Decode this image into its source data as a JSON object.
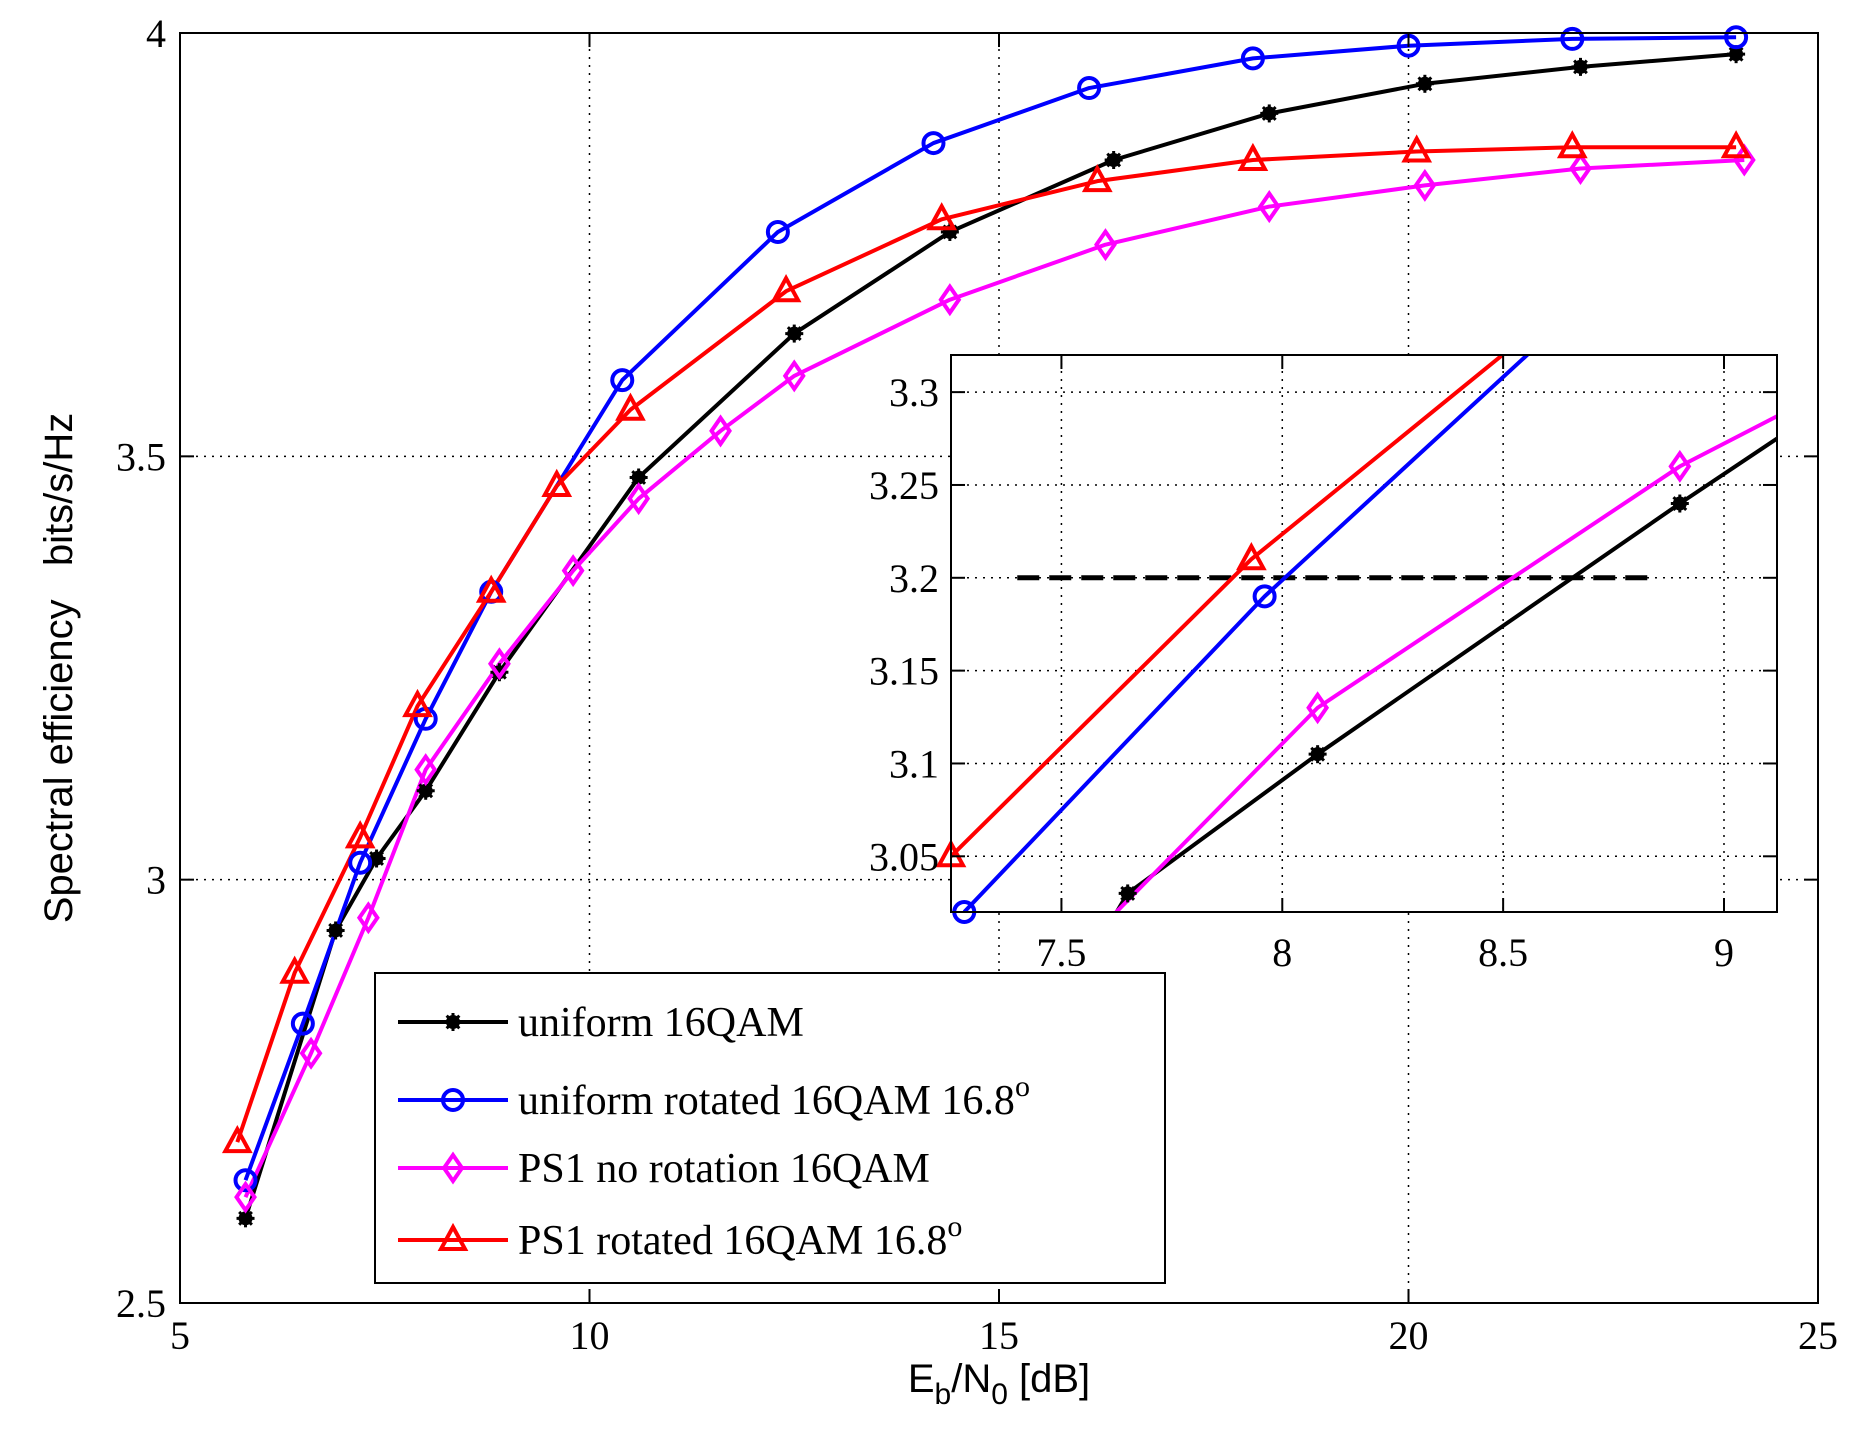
{
  "chart_data": [
    {
      "type": "line",
      "name": "main",
      "xlabel": "E_b/N_0 [dB]",
      "xlabel_parts": {
        "base1": "E",
        "sub1": "b",
        "slash": "/N",
        "sub2": "0",
        "rest": " [dB]"
      },
      "ylabel": "Spectral efficiency   bits/s/Hz",
      "xlim": [
        5,
        25
      ],
      "ylim": [
        2.5,
        4
      ],
      "xticks": [
        5,
        10,
        15,
        20,
        25
      ],
      "yticks": [
        2.5,
        3,
        3.5,
        4
      ],
      "xtick_labels": [
        "5",
        "10",
        "15",
        "20",
        "25"
      ],
      "ytick_labels": [
        "2.5",
        "3",
        "3.5",
        "4"
      ],
      "grid": true,
      "legend_position": "bottom-center",
      "series": [
        {
          "name": "uniform 16QAM",
          "color": "#000000",
          "marker": "asterisk",
          "x": [
            5.8,
            6.9,
            7.4,
            8.0,
            8.9,
            10.6,
            12.5,
            14.4,
            16.4,
            18.3,
            20.2,
            22.1,
            24.0
          ],
          "y": [
            2.6,
            2.94,
            3.025,
            3.105,
            3.245,
            3.475,
            3.645,
            3.765,
            3.85,
            3.905,
            3.94,
            3.96,
            3.975
          ]
        },
        {
          "name": "uniform rotated 16QAM  16.8",
          "name_suffix": "o",
          "color": "#0000ff",
          "marker": "circle",
          "x": [
            5.8,
            6.5,
            7.2,
            8.0,
            8.8,
            10.4,
            12.3,
            14.2,
            16.1,
            18.1,
            20.0,
            22.0,
            24.0
          ],
          "y": [
            2.645,
            2.83,
            3.02,
            3.19,
            3.34,
            3.59,
            3.765,
            3.87,
            3.935,
            3.97,
            3.985,
            3.993,
            3.995
          ]
        },
        {
          "name": "PS1 no rotation 16QAM",
          "color": "#ff00ff",
          "marker": "diamond",
          "x": [
            5.8,
            6.6,
            7.3,
            8.0,
            8.9,
            9.8,
            10.6,
            11.6,
            12.5,
            14.4,
            16.3,
            18.3,
            20.2,
            22.1,
            24.1
          ],
          "y": [
            2.625,
            2.795,
            2.955,
            3.13,
            3.255,
            3.365,
            3.45,
            3.53,
            3.595,
            3.685,
            3.75,
            3.795,
            3.82,
            3.84,
            3.85
          ]
        },
        {
          "name": "PS1 rotated 16QAM  16.8",
          "name_suffix": "o",
          "color": "#ff0000",
          "marker": "triangle",
          "x": [
            5.7,
            6.4,
            7.2,
            7.9,
            8.8,
            9.6,
            10.5,
            12.4,
            14.3,
            16.2,
            18.1,
            20.1,
            22.0,
            24.0
          ],
          "y": [
            2.69,
            2.89,
            3.05,
            3.205,
            3.34,
            3.465,
            3.555,
            3.695,
            3.78,
            3.825,
            3.85,
            3.86,
            3.865,
            3.865
          ]
        }
      ]
    },
    {
      "type": "line",
      "name": "inset",
      "xlim": [
        7.25,
        9.12
      ],
      "ylim": [
        3.02,
        3.32
      ],
      "xticks": [
        7.5,
        8,
        8.5,
        9
      ],
      "yticks": [
        3.05,
        3.1,
        3.15,
        3.2,
        3.25,
        3.3
      ],
      "xtick_labels": [
        "7.5",
        "8",
        "8.5",
        "9"
      ],
      "ytick_labels": [
        "3.05",
        "3.1",
        "3.15",
        "3.2",
        "3.25",
        "3.3"
      ],
      "grid": true,
      "reference_line": {
        "y": 3.2,
        "x_from": 7.4,
        "x_to": 8.83,
        "color": "#000000",
        "style": "dashed"
      },
      "series": [
        {
          "name": "uniform 16QAM",
          "color": "#000000",
          "marker": "asterisk",
          "x": [
            7.55,
            7.65,
            8.08,
            8.9,
            9.12
          ],
          "y": [
            2.99,
            3.03,
            3.105,
            3.24,
            3.275
          ],
          "marker_x": [
            7.65,
            8.08,
            8.9
          ],
          "marker_y": [
            3.03,
            3.105,
            3.24
          ]
        },
        {
          "name": "uniform rotated 16QAM  16.8",
          "color": "#0000ff",
          "marker": "circle",
          "x": [
            7.28,
            7.96,
            8.6
          ],
          "y": [
            3.02,
            3.19,
            3.33
          ],
          "marker_x": [
            7.28,
            7.96
          ],
          "marker_y": [
            3.02,
            3.19
          ]
        },
        {
          "name": "PS1 no rotation 16QAM",
          "color": "#ff00ff",
          "marker": "diamond",
          "x": [
            7.5,
            8.08,
            8.9,
            9.12
          ],
          "y": [
            2.99,
            3.13,
            3.26,
            3.287
          ],
          "marker_x": [
            8.08,
            8.9
          ],
          "marker_y": [
            3.13,
            3.26
          ]
        },
        {
          "name": "PS1 rotated 16QAM  16.8",
          "color": "#ff0000",
          "marker": "triangle",
          "x": [
            7.25,
            7.93,
            8.55
          ],
          "y": [
            3.05,
            3.21,
            3.33
          ],
          "marker_x": [
            7.25,
            7.93
          ],
          "marker_y": [
            3.05,
            3.21
          ]
        }
      ]
    }
  ]
}
